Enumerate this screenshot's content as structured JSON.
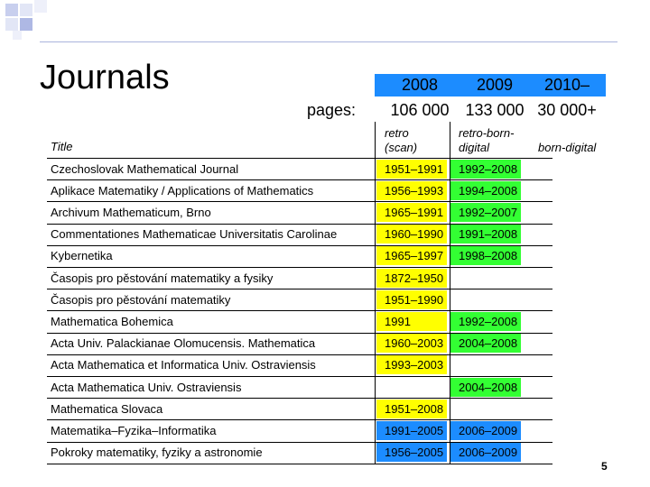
{
  "slide": {
    "title": "Journals",
    "pages_label": "pages:",
    "page_number": "5"
  },
  "years": [
    {
      "label": "2008",
      "count": "106 000"
    },
    {
      "label": "2009",
      "count": "133 000"
    },
    {
      "label": "2010–",
      "count": "30 000+"
    }
  ],
  "columns": {
    "title": "Title",
    "retro_scan": [
      "retro",
      "(scan)"
    ],
    "retro_born": [
      "retro-born-",
      "digital"
    ],
    "born_digital": "born-digital"
  },
  "colors": {
    "retro": "#ffff00",
    "retro_born": "#33ff33",
    "born_digital": "#1c8cff"
  },
  "rows": [
    {
      "title": "Czechoslovak Mathematical Journal",
      "retro": "1951–1991",
      "retro_c": "yellow",
      "rb": "1992–2008",
      "rb_c": "green"
    },
    {
      "title": "Aplikace Matematiky / Applications of Mathematics",
      "retro": "1956–1993",
      "retro_c": "yellow",
      "rb": "1994–2008",
      "rb_c": "green"
    },
    {
      "title": "Archivum Mathematicum, Brno",
      "retro": "1965–1991",
      "retro_c": "yellow",
      "rb": "1992–2007",
      "rb_c": "green"
    },
    {
      "title": "Commentationes Mathematicae Universitatis Carolinae",
      "retro": "1960–1990",
      "retro_c": "yellow",
      "rb": "1991–2008",
      "rb_c": "green"
    },
    {
      "title": "Kybernetika",
      "retro": "1965–1997",
      "retro_c": "yellow",
      "rb": "1998–2008",
      "rb_c": "green"
    },
    {
      "title": "Časopis pro pěstování matematiky a fysiky",
      "retro": "1872–1950",
      "retro_c": "yellow",
      "rb": "",
      "rb_c": ""
    },
    {
      "title": "Časopis pro pěstování matematiky",
      "retro": "1951–1990",
      "retro_c": "yellow",
      "rb": "",
      "rb_c": ""
    },
    {
      "title": "Mathematica Bohemica",
      "retro": "1991",
      "retro_c": "yellow",
      "rb": "1992–2008",
      "rb_c": "green"
    },
    {
      "title": "Acta Univ. Palackianae Olomucensis. Mathematica",
      "retro": "1960–2003",
      "retro_c": "yellow",
      "rb": "2004–2008",
      "rb_c": "green"
    },
    {
      "title": "Acta Mathematica et Informatica Univ. Ostraviensis",
      "retro": "1993–2003",
      "retro_c": "yellow",
      "rb": "",
      "rb_c": ""
    },
    {
      "title": "Acta Mathematica Univ. Ostraviensis",
      "retro": "",
      "retro_c": "",
      "rb": "2004–2008",
      "rb_c": "green"
    },
    {
      "title": "Mathematica Slovaca",
      "retro": "1951–2008",
      "retro_c": "yellow",
      "rb": "",
      "rb_c": ""
    },
    {
      "title": "Matematika–Fyzika–Informatika",
      "retro": "1991–2005",
      "retro_c": "blue",
      "rb": "2006–2009",
      "rb_c": "blue"
    },
    {
      "title": "Pokroky matematiky, fyziky a astronomie",
      "retro": "1956–2005",
      "retro_c": "blue",
      "rb": "2006–2009",
      "rb_c": "blue"
    }
  ]
}
